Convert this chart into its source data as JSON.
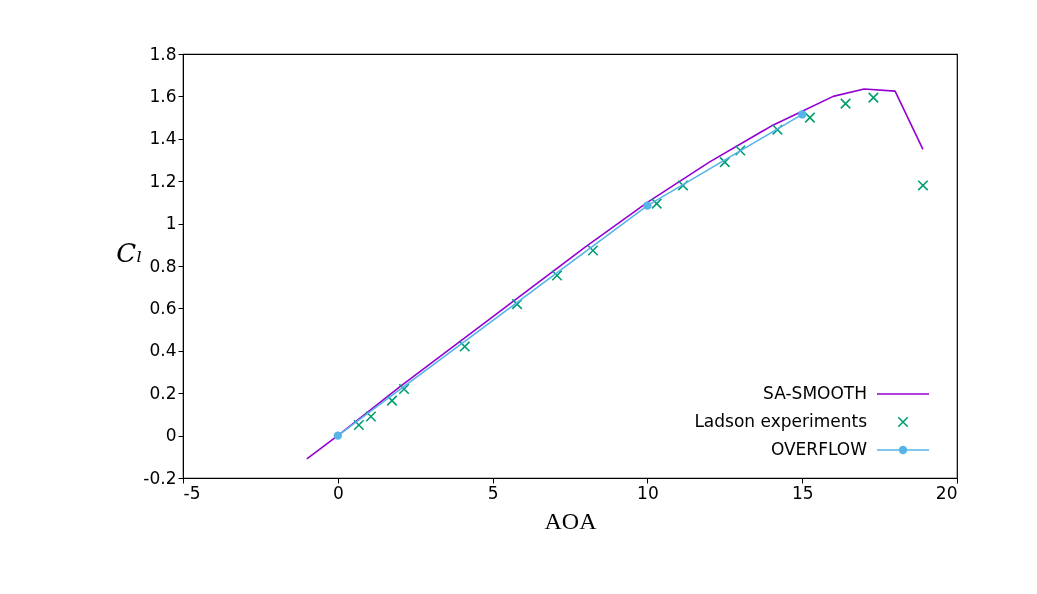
{
  "chart_data": {
    "type": "line",
    "xlabel": "AOA",
    "ylabel": "Cₗ",
    "xlim": [
      -5,
      20
    ],
    "ylim": [
      -0.2,
      1.8
    ],
    "xticks": [
      -5,
      0,
      5,
      10,
      15,
      20
    ],
    "yticks": [
      -0.2,
      0,
      0.2,
      0.4,
      0.6,
      0.8,
      1,
      1.2,
      1.4,
      1.6,
      1.8
    ],
    "grid": false,
    "legend": "bottom right",
    "series": [
      {
        "name": "SA-SMOOTH",
        "type": "line",
        "marker": "none",
        "color": "#9400d3",
        "x": [
          -1,
          0,
          2,
          5,
          8,
          10,
          12,
          14,
          15,
          16,
          17,
          18,
          18.9
        ],
        "values": [
          -0.11,
          0.0,
          0.23,
          0.56,
          0.89,
          1.1,
          1.29,
          1.46,
          1.53,
          1.6,
          1.635,
          1.625,
          1.35
        ]
      },
      {
        "name": "Ladson experiments",
        "type": "scatter",
        "marker": "cross",
        "color": "#009e73",
        "x": [
          0.68,
          1.07,
          1.75,
          2.14,
          4.1,
          5.79,
          7.08,
          8.24,
          10.3,
          11.15,
          12.5,
          13.0,
          14.2,
          15.25,
          16.4,
          17.3,
          18.9
        ],
        "values": [
          0.05,
          0.09,
          0.165,
          0.22,
          0.42,
          0.62,
          0.755,
          0.873,
          1.094,
          1.18,
          1.29,
          1.345,
          1.443,
          1.5,
          1.566,
          1.594,
          1.18
        ]
      },
      {
        "name": "OVERFLOW",
        "type": "line",
        "marker": "circle",
        "color": "#56b4e9",
        "x": [
          0,
          10,
          15
        ],
        "values": [
          0,
          1.085,
          1.515
        ]
      }
    ]
  }
}
